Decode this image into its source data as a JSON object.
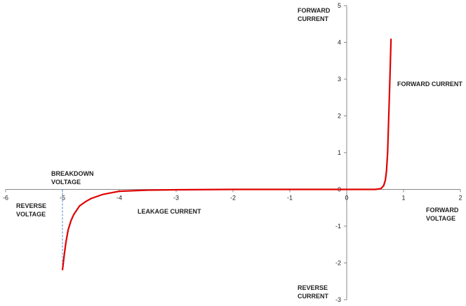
{
  "chart_data": {
    "type": "line",
    "x": [
      -5,
      -4.97,
      -4.94,
      -4.9,
      -4.85,
      -4.8,
      -4.7,
      -4.6,
      -4.5,
      -4.3,
      -4.1,
      -4,
      -3.5,
      -3,
      -2,
      -1,
      0,
      0.5,
      0.6,
      0.65,
      0.68,
      0.7,
      0.72,
      0.74,
      0.76,
      0.78
    ],
    "values": [
      -2.2,
      -1.8,
      -1.45,
      -1.1,
      -0.85,
      -0.68,
      -0.45,
      -0.34,
      -0.25,
      -0.14,
      -0.08,
      -0.05,
      -0.02,
      -0.01,
      0,
      0,
      0,
      0,
      0.02,
      0.1,
      0.25,
      0.5,
      1,
      2,
      3,
      4.1
    ],
    "color": "#e00000",
    "xlim": [
      -6,
      2
    ],
    "xticks": [
      -6,
      -5,
      -4,
      -3,
      -2,
      -1,
      0,
      1,
      2
    ],
    "ylim": [
      -3,
      5
    ],
    "yticks": [
      -3,
      -2,
      -1,
      0,
      1,
      2,
      3,
      4,
      5
    ],
    "x_label_positive": "FORWARD VOLTAGE",
    "x_label_negative": "REVERSE VOLTAGE",
    "y_label_positive": "FORWARD CURRENT",
    "y_label_negative": "REVERSE CURRENT",
    "annotations": [
      "BREAKDOWN VOLTAGE",
      "LEAKAGE CURRENT",
      "FORWARD CURRENT"
    ]
  }
}
